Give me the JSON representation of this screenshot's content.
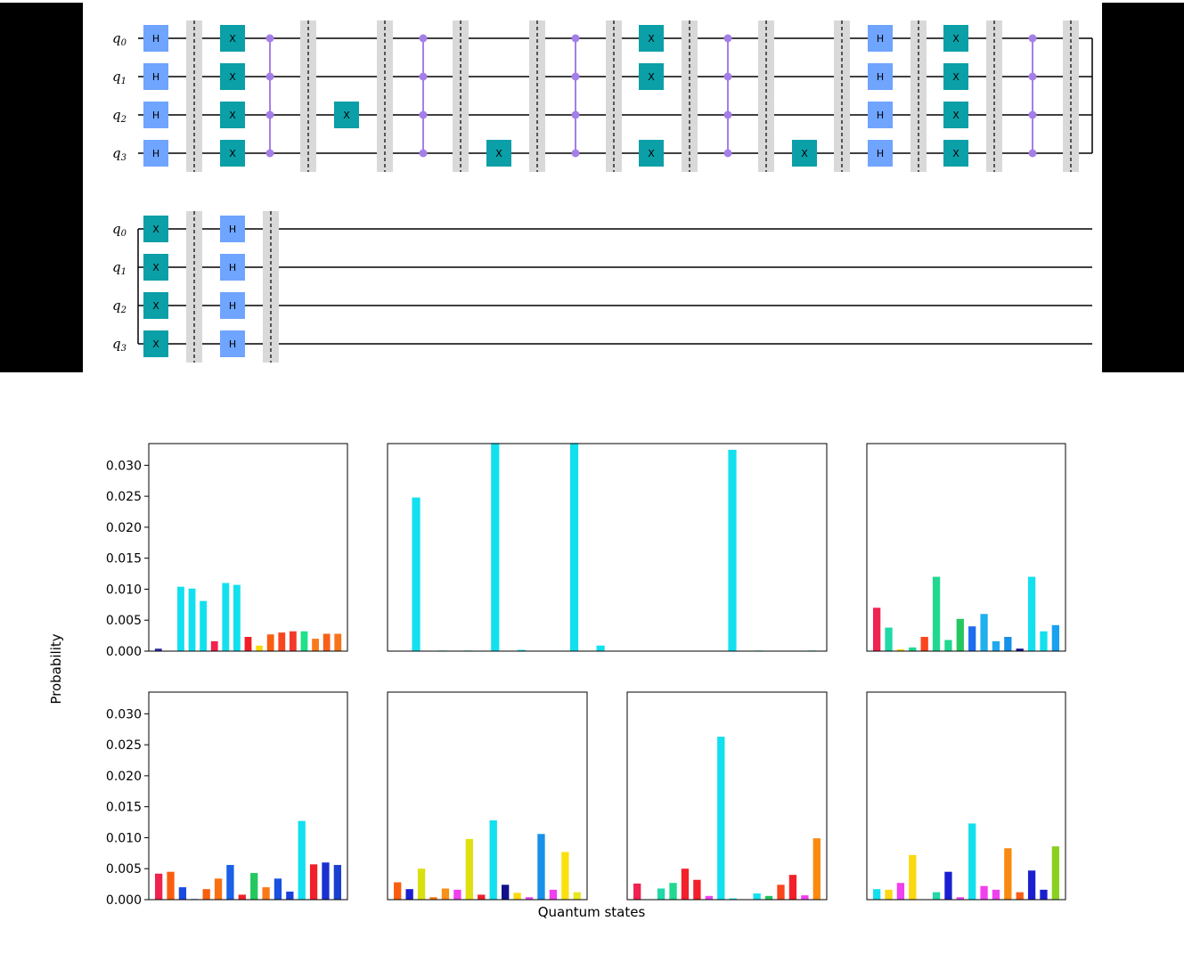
{
  "circuit": {
    "qubit_labels": [
      "q0",
      "q1",
      "q2",
      "q3"
    ],
    "colors": {
      "h_gate": "#6fa4ff",
      "x_gate": "#0b9fa8",
      "control": "#a57fe8",
      "barrier": "#d9d9d9"
    },
    "gate_labels": {
      "h": "H",
      "x": "X"
    },
    "row1_columns": [
      {
        "type": "gate",
        "gate": "H",
        "qubits": [
          0,
          1,
          2,
          3
        ]
      },
      {
        "type": "barrier"
      },
      {
        "type": "gate",
        "gate": "X",
        "qubits": [
          0,
          1,
          2,
          3
        ]
      },
      {
        "type": "mcz",
        "qubits": [
          0,
          1,
          2,
          3
        ]
      },
      {
        "type": "barrier"
      },
      {
        "type": "gate",
        "gate": "X",
        "qubits": [
          2
        ]
      },
      {
        "type": "barrier"
      },
      {
        "type": "mcz",
        "qubits": [
          0,
          1,
          2,
          3
        ]
      },
      {
        "type": "barrier"
      },
      {
        "type": "gate",
        "gate": "X",
        "qubits": [
          3
        ]
      },
      {
        "type": "barrier"
      },
      {
        "type": "mcz",
        "qubits": [
          0,
          1,
          2,
          3
        ]
      },
      {
        "type": "barrier"
      },
      {
        "type": "gate",
        "gate": "X",
        "qubits": [
          0,
          1,
          3
        ]
      },
      {
        "type": "barrier"
      },
      {
        "type": "mcz",
        "qubits": [
          0,
          1,
          2,
          3
        ]
      },
      {
        "type": "barrier"
      },
      {
        "type": "gate",
        "gate": "X",
        "qubits": [
          3
        ]
      },
      {
        "type": "barrier"
      },
      {
        "type": "gate",
        "gate": "H",
        "qubits": [
          0,
          1,
          2,
          3
        ]
      },
      {
        "type": "barrier"
      },
      {
        "type": "gate",
        "gate": "X",
        "qubits": [
          0,
          1,
          2,
          3
        ]
      },
      {
        "type": "barrier"
      },
      {
        "type": "mcz",
        "qubits": [
          0,
          1,
          2,
          3
        ]
      },
      {
        "type": "barrier"
      }
    ],
    "row2_columns": [
      {
        "type": "gate",
        "gate": "X",
        "qubits": [
          0,
          1,
          2,
          3
        ]
      },
      {
        "type": "barrier"
      },
      {
        "type": "gate",
        "gate": "H",
        "qubits": [
          0,
          1,
          2,
          3
        ]
      },
      {
        "type": "barrier"
      }
    ]
  },
  "chart_data": {
    "type": "bar",
    "xlabel": "Quantum states",
    "ylabel": "Probability",
    "ylim": [
      0,
      0.0335
    ],
    "yticks": [
      "0.000",
      "0.005",
      "0.010",
      "0.015",
      "0.020",
      "0.025",
      "0.030"
    ],
    "yticks_values": [
      0,
      0.005,
      0.01,
      0.015,
      0.02,
      0.025,
      0.03
    ],
    "grid": false,
    "panels": [
      {
        "id": "p1",
        "values": [
          0.0004,
          0,
          0.0104,
          0.0101,
          0.0081,
          0.0016,
          0.011,
          0.0107,
          0.0023,
          0.0009,
          0.0027,
          0.003,
          0.0032,
          0.0032,
          0.002,
          0.0028,
          0.0028
        ],
        "colors": [
          "#2a2aa8",
          "#2a2aa8",
          "#12e0ef",
          "#12e0ef",
          "#12e0ef",
          "#f0224f",
          "#12e0ef",
          "#12e0ef",
          "#f21f2a",
          "#fbd810",
          "#f95e10",
          "#f9461e",
          "#f23a2a",
          "#20e08a",
          "#f9791a",
          "#f65f1a",
          "#f6741a"
        ]
      },
      {
        "id": "p2",
        "values": [
          0,
          0.0248,
          0,
          0.0001,
          0,
          0.0001,
          0,
          0.0336,
          0,
          0.0002,
          0,
          0,
          0,
          0.0336,
          0,
          0.0009,
          0,
          0,
          0,
          0,
          0,
          0,
          0,
          0,
          0,
          0.0325,
          0,
          0.0001,
          0,
          0,
          0,
          0.0001
        ],
        "colors": [
          "#12e0ef"
        ]
      },
      {
        "id": "p3",
        "values": [
          0.007,
          0.0038,
          0.0003,
          0.0006,
          0.0023,
          0.012,
          0.0018,
          0.0052,
          0.004,
          0.006,
          0.0016,
          0.0023,
          0.0004,
          0.012,
          0.0032,
          0.0042
        ],
        "colors": [
          "#f0224f",
          "#20d8a8",
          "#fbd810",
          "#20d890",
          "#f9461e",
          "#20d890",
          "#20d890",
          "#24c85f",
          "#1f6cf0",
          "#20b0f0",
          "#20a8f0",
          "#1890e8",
          "#10108a",
          "#12e0ef",
          "#12e0ef",
          "#1aa0f0"
        ]
      },
      {
        "id": "p4",
        "values": [
          0.0042,
          0.0045,
          0.002,
          0.0001,
          0.0017,
          0.0034,
          0.0056,
          0.0008,
          0.0043,
          0.002,
          0.0034,
          0.0013,
          0.0127,
          0.0057,
          0.006,
          0.0056
        ],
        "colors": [
          "#f0224f",
          "#f95e10",
          "#1a4ae0",
          "#1a4ae0",
          "#f95e10",
          "#f97010",
          "#1a60e8",
          "#f2202a",
          "#24c85f",
          "#f9791a",
          "#1a50e0",
          "#1a40d8",
          "#12e0ef",
          "#f2202a",
          "#1a30d0",
          "#1a40d0"
        ]
      },
      {
        "id": "p5",
        "values": [
          0.0028,
          0.0017,
          0.005,
          0.0004,
          0.0018,
          0.0016,
          0.0098,
          0.0008,
          0.0128,
          0.0024,
          0.0011,
          0.0004,
          0.0106,
          0.0016,
          0.0077,
          0.0012
        ],
        "colors": [
          "#f95e10",
          "#1a20d0",
          "#d8e010",
          "#f9791a",
          "#f9901a",
          "#f040f0",
          "#e0e010",
          "#f2202a",
          "#12e0ef",
          "#10108a",
          "#fbd810",
          "#f040f0",
          "#1890e8",
          "#f040f0",
          "#fbe010",
          "#e8e820"
        ]
      },
      {
        "id": "p6",
        "values": [
          0.0026,
          0,
          0.0018,
          0.0027,
          0.005,
          0.0032,
          0.0006,
          0.0263,
          0.0002,
          0,
          0.001,
          0.0006,
          0.0024,
          0.004,
          0.0007,
          0.0099
        ],
        "colors": [
          "#f0224f",
          "#f0224f",
          "#20d8a8",
          "#20d890",
          "#f2202a",
          "#f2202a",
          "#f040f0",
          "#12e0ef",
          "#12e0ef",
          "#12e0ef",
          "#12e0ef",
          "#24c85f",
          "#f9461e",
          "#f2202a",
          "#f040f0",
          "#f98a10"
        ]
      },
      {
        "id": "p7",
        "values": [
          0.0017,
          0.0016,
          0.0027,
          0.0072,
          0,
          0.0012,
          0.0045,
          0.0004,
          0.0123,
          0.0022,
          0.0016,
          0.0083,
          0.0012,
          0.0047,
          0.0016,
          0.0086
        ],
        "colors": [
          "#12e0ef",
          "#fbd810",
          "#f040f0",
          "#fbd810",
          "#fbd810",
          "#20d8a8",
          "#1a20d0",
          "#f040f0",
          "#12e0ef",
          "#f040f0",
          "#f040f0",
          "#f98a10",
          "#f95e10",
          "#1a20d0",
          "#1a20d0",
          "#8ad020"
        ]
      }
    ]
  }
}
